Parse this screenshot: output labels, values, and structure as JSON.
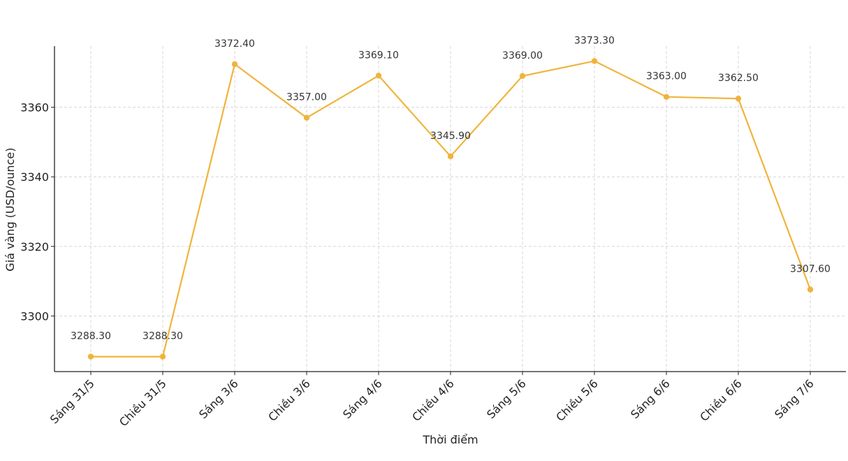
{
  "chart_data": {
    "type": "line",
    "title": "",
    "xlabel": "Thời điểm",
    "ylabel": "Giá vàng (USD/ounce)",
    "categories": [
      "Sáng 31/5",
      "Chiều 31/5",
      "Sáng 3/6",
      "Chiều 3/6",
      "Sáng 4/6",
      "Chiều 4/6",
      "Sáng 5/6",
      "Chiều 5/6",
      "Sáng 6/6",
      "Chiều 6/6",
      "Sáng 7/6"
    ],
    "series": [
      {
        "values": [
          3288.3,
          3288.3,
          3372.4,
          3357.0,
          3369.1,
          3345.9,
          3369.0,
          3373.3,
          3363.0,
          3362.5,
          3307.6
        ],
        "labels": [
          "3288.30",
          "3288.30",
          "3372.40",
          "3357.00",
          "3369.10",
          "3345.90",
          "3369.00",
          "3373.30",
          "3363.00",
          "3362.50",
          "3307.60"
        ],
        "color": "#f0b43c"
      }
    ],
    "yticks": [
      3300,
      3320,
      3340,
      3360
    ],
    "ylim": [
      3284,
      3377.6
    ],
    "grid": true,
    "legend": "none",
    "marker": "circle"
  }
}
